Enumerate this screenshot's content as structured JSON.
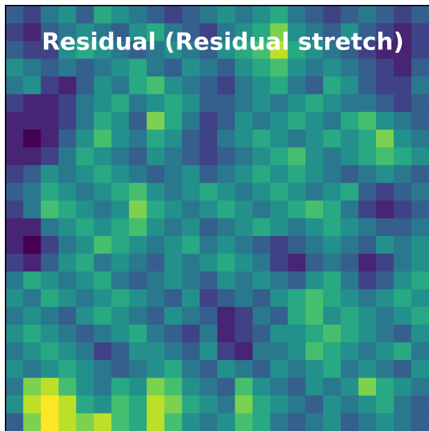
{
  "chart_data": {
    "type": "heatmap",
    "title": "Residual (Residual stretch)",
    "colormap": "viridis",
    "values": [
      [
        0.3,
        0.2,
        0.4,
        0.5,
        0.3,
        0.6,
        0.5,
        0.4,
        0.3,
        0.2,
        0.3,
        0.4,
        0.5,
        0.4,
        0.5,
        0.6,
        0.4,
        0.3,
        0.2,
        0.3,
        0.4,
        0.3,
        0.2,
        0.3
      ],
      [
        0.2,
        0.1,
        0.3,
        0.4,
        0.5,
        0.4,
        0.3,
        0.5,
        0.6,
        0.4,
        0.3,
        0.2,
        0.4,
        0.5,
        0.6,
        0.8,
        0.5,
        0.4,
        0.3,
        0.5,
        0.3,
        0.2,
        0.1,
        0.2
      ],
      [
        0.3,
        0.2,
        0.2,
        0.5,
        0.6,
        0.5,
        0.4,
        0.3,
        0.4,
        0.5,
        0.4,
        0.3,
        0.5,
        0.6,
        0.7,
        0.9,
        0.6,
        0.5,
        0.4,
        0.3,
        0.2,
        0.1,
        0.1,
        0.2
      ],
      [
        0.5,
        0.4,
        0.3,
        0.4,
        0.3,
        0.4,
        0.5,
        0.6,
        0.4,
        0.3,
        0.5,
        0.4,
        0.3,
        0.5,
        0.6,
        0.7,
        0.5,
        0.4,
        0.5,
        0.4,
        0.3,
        0.2,
        0.1,
        0.3
      ],
      [
        0.4,
        0.5,
        0.2,
        0.1,
        0.3,
        0.5,
        0.4,
        0.6,
        0.7,
        0.5,
        0.4,
        0.3,
        0.2,
        0.4,
        0.5,
        0.6,
        0.4,
        0.3,
        0.6,
        0.5,
        0.3,
        0.2,
        0.2,
        0.4
      ],
      [
        0.2,
        0.1,
        0.1,
        0.2,
        0.4,
        0.5,
        0.6,
        0.4,
        0.5,
        0.6,
        0.5,
        0.3,
        0.3,
        0.4,
        0.5,
        0.4,
        0.5,
        0.6,
        0.5,
        0.4,
        0.4,
        0.3,
        0.2,
        0.3
      ],
      [
        0.1,
        0.1,
        0.1,
        0.2,
        0.4,
        0.6,
        0.5,
        0.3,
        0.8,
        0.6,
        0.4,
        0.2,
        0.3,
        0.5,
        0.4,
        0.5,
        0.6,
        0.5,
        0.4,
        0.6,
        0.7,
        0.5,
        0.4,
        0.3
      ],
      [
        0.1,
        0.0,
        0.1,
        0.3,
        0.5,
        0.7,
        0.5,
        0.4,
        0.6,
        0.5,
        0.3,
        0.2,
        0.4,
        0.5,
        0.6,
        0.5,
        0.4,
        0.5,
        0.6,
        0.5,
        0.6,
        0.8,
        0.5,
        0.4
      ],
      [
        0.1,
        0.1,
        0.2,
        0.4,
        0.6,
        0.5,
        0.4,
        0.3,
        0.5,
        0.4,
        0.3,
        0.2,
        0.3,
        0.4,
        0.5,
        0.6,
        0.7,
        0.5,
        0.4,
        0.5,
        0.6,
        0.7,
        0.6,
        0.5
      ],
      [
        0.2,
        0.3,
        0.5,
        0.4,
        0.5,
        0.6,
        0.5,
        0.4,
        0.3,
        0.4,
        0.5,
        0.3,
        0.4,
        0.5,
        0.6,
        0.5,
        0.6,
        0.5,
        0.4,
        0.3,
        0.4,
        0.5,
        0.4,
        0.3
      ],
      [
        0.3,
        0.4,
        0.6,
        0.5,
        0.4,
        0.5,
        0.6,
        0.7,
        0.5,
        0.4,
        0.5,
        0.6,
        0.5,
        0.4,
        0.5,
        0.6,
        0.5,
        0.4,
        0.5,
        0.6,
        0.3,
        0.2,
        0.3,
        0.4
      ],
      [
        0.2,
        0.4,
        0.7,
        0.6,
        0.5,
        0.4,
        0.5,
        0.8,
        0.6,
        0.5,
        0.4,
        0.5,
        0.6,
        0.5,
        0.4,
        0.5,
        0.6,
        0.7,
        0.6,
        0.4,
        0.2,
        0.1,
        0.2,
        0.3
      ],
      [
        0.1,
        0.1,
        0.4,
        0.5,
        0.6,
        0.5,
        0.6,
        0.7,
        0.5,
        0.4,
        0.5,
        0.3,
        0.4,
        0.5,
        0.6,
        0.5,
        0.4,
        0.5,
        0.6,
        0.5,
        0.4,
        0.3,
        0.3,
        0.4
      ],
      [
        0.1,
        0.0,
        0.2,
        0.4,
        0.5,
        0.7,
        0.6,
        0.5,
        0.4,
        0.5,
        0.6,
        0.4,
        0.5,
        0.4,
        0.3,
        0.2,
        0.3,
        0.4,
        0.5,
        0.4,
        0.3,
        0.5,
        0.4,
        0.5
      ],
      [
        0.2,
        0.1,
        0.3,
        0.5,
        0.6,
        0.4,
        0.5,
        0.4,
        0.3,
        0.5,
        0.4,
        0.5,
        0.6,
        0.5,
        0.4,
        0.2,
        0.1,
        0.3,
        0.4,
        0.3,
        0.1,
        0.2,
        0.4,
        0.5
      ],
      [
        0.4,
        0.6,
        0.5,
        0.4,
        0.5,
        0.6,
        0.4,
        0.3,
        0.4,
        0.5,
        0.4,
        0.3,
        0.5,
        0.4,
        0.5,
        0.4,
        0.3,
        0.5,
        0.6,
        0.4,
        0.2,
        0.3,
        0.5,
        0.6
      ],
      [
        0.5,
        0.4,
        0.6,
        0.5,
        0.4,
        0.5,
        0.6,
        0.5,
        0.4,
        0.3,
        0.5,
        0.2,
        0.3,
        0.4,
        0.3,
        0.5,
        0.6,
        0.7,
        0.6,
        0.5,
        0.4,
        0.5,
        0.6,
        0.5
      ],
      [
        0.4,
        0.5,
        0.4,
        0.3,
        0.5,
        0.6,
        0.5,
        0.4,
        0.3,
        0.5,
        0.4,
        0.3,
        0.1,
        0.2,
        0.4,
        0.3,
        0.6,
        0.7,
        0.5,
        0.6,
        0.5,
        0.4,
        0.5,
        0.6
      ],
      [
        0.5,
        0.6,
        0.5,
        0.4,
        0.3,
        0.4,
        0.5,
        0.6,
        0.4,
        0.3,
        0.2,
        0.4,
        0.1,
        0.2,
        0.3,
        0.5,
        0.5,
        0.6,
        0.7,
        0.6,
        0.5,
        0.4,
        0.3,
        0.5
      ],
      [
        0.4,
        0.5,
        0.6,
        0.5,
        0.4,
        0.2,
        0.3,
        0.5,
        0.5,
        0.4,
        0.3,
        0.5,
        0.2,
        0.1,
        0.4,
        0.4,
        0.5,
        0.7,
        0.6,
        0.5,
        0.4,
        0.5,
        0.6,
        0.4
      ],
      [
        0.5,
        0.4,
        0.5,
        0.6,
        0.5,
        0.4,
        0.3,
        0.4,
        0.5,
        0.6,
        0.4,
        0.3,
        0.5,
        0.4,
        0.3,
        0.5,
        0.4,
        0.5,
        0.6,
        0.4,
        0.5,
        0.4,
        0.3,
        0.5
      ],
      [
        0.4,
        0.8,
        0.9,
        0.7,
        0.5,
        0.4,
        0.6,
        0.5,
        0.8,
        0.7,
        0.5,
        0.4,
        0.3,
        0.7,
        0.5,
        0.4,
        0.3,
        0.5,
        0.4,
        0.5,
        0.8,
        0.6,
        0.5,
        0.4
      ],
      [
        0.5,
        0.9,
        1.0,
        0.9,
        0.6,
        0.5,
        0.7,
        0.6,
        0.9,
        0.8,
        0.6,
        0.5,
        0.4,
        0.8,
        0.6,
        0.5,
        0.4,
        0.3,
        0.5,
        0.4,
        0.5,
        0.6,
        0.4,
        0.3
      ],
      [
        0.3,
        0.8,
        1.0,
        0.9,
        0.8,
        0.9,
        0.7,
        0.6,
        0.9,
        0.7,
        0.5,
        0.4,
        0.5,
        0.7,
        0.6,
        0.4,
        0.3,
        0.4,
        0.5,
        0.3,
        0.4,
        0.5,
        0.4,
        0.3
      ]
    ]
  }
}
